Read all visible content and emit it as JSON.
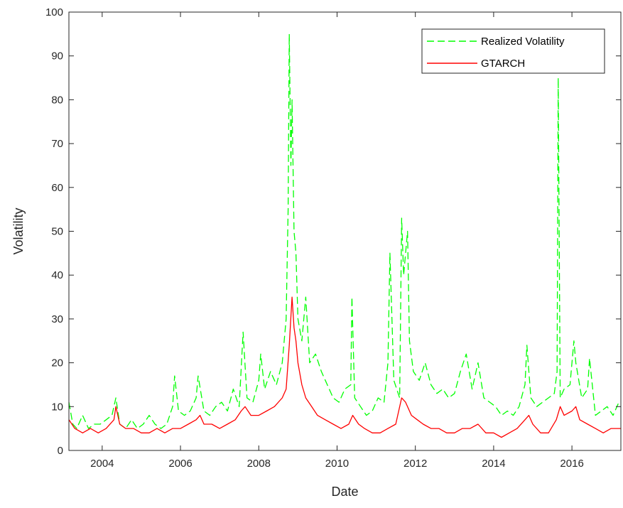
{
  "chart_data": {
    "type": "line",
    "xlabel": "Date",
    "ylabel": "Volatility",
    "xlim": [
      2003.15,
      2017.25
    ],
    "ylim": [
      0,
      100
    ],
    "x_ticks": [
      2004,
      2006,
      2008,
      2010,
      2012,
      2014,
      2016
    ],
    "y_ticks": [
      0,
      10,
      20,
      30,
      40,
      50,
      60,
      70,
      80,
      90,
      100
    ],
    "grid": false,
    "legend_position": "top-right",
    "series": [
      {
        "name": "Realized Volatility",
        "color": "#00ff00",
        "style": "dashed",
        "x": [
          2003.15,
          2003.25,
          2003.35,
          2003.5,
          2003.65,
          2003.8,
          2003.95,
          2004.1,
          2004.25,
          2004.35,
          2004.45,
          2004.6,
          2004.75,
          2004.9,
          2005.05,
          2005.2,
          2005.35,
          2005.5,
          2005.65,
          2005.8,
          2005.85,
          2005.95,
          2006.1,
          2006.25,
          2006.4,
          2006.45,
          2006.6,
          2006.75,
          2006.9,
          2007.05,
          2007.2,
          2007.35,
          2007.5,
          2007.6,
          2007.7,
          2007.85,
          2008.0,
          2008.05,
          2008.15,
          2008.3,
          2008.45,
          2008.6,
          2008.7,
          2008.75,
          2008.78,
          2008.82,
          2008.85,
          2008.9,
          2008.95,
          2009.0,
          2009.1,
          2009.2,
          2009.3,
          2009.45,
          2009.6,
          2009.75,
          2009.9,
          2010.05,
          2010.2,
          2010.35,
          2010.38,
          2010.45,
          2010.6,
          2010.75,
          2010.9,
          2011.05,
          2011.2,
          2011.3,
          2011.35,
          2011.45,
          2011.6,
          2011.65,
          2011.7,
          2011.8,
          2011.85,
          2011.95,
          2012.1,
          2012.25,
          2012.4,
          2012.55,
          2012.7,
          2012.85,
          2013.0,
          2013.15,
          2013.3,
          2013.45,
          2013.6,
          2013.75,
          2013.9,
          2014.05,
          2014.2,
          2014.35,
          2014.5,
          2014.65,
          2014.8,
          2014.85,
          2014.95,
          2015.1,
          2015.25,
          2015.4,
          2015.55,
          2015.62,
          2015.65,
          2015.7,
          2015.8,
          2015.95,
          2016.05,
          2016.1,
          2016.25,
          2016.4,
          2016.45,
          2016.6,
          2016.75,
          2016.9,
          2017.05,
          2017.2
        ],
        "values": [
          11,
          6,
          5,
          8,
          5,
          6,
          6,
          7,
          8,
          12,
          6,
          5,
          7,
          5,
          6,
          8,
          6,
          5,
          6,
          10,
          17,
          9,
          8,
          9,
          12,
          17,
          9,
          8,
          10,
          11,
          9,
          14,
          10,
          27,
          12,
          11,
          16,
          22,
          14,
          18,
          15,
          20,
          30,
          55,
          95,
          65,
          80,
          50,
          45,
          30,
          25,
          35,
          20,
          22,
          18,
          15,
          12,
          11,
          14,
          15,
          35,
          12,
          10,
          8,
          9,
          12,
          11,
          20,
          45,
          16,
          12,
          53,
          40,
          50,
          25,
          18,
          16,
          20,
          15,
          13,
          14,
          12,
          13,
          18,
          22,
          14,
          20,
          12,
          11,
          10,
          8,
          9,
          8,
          10,
          15,
          24,
          12,
          10,
          11,
          12,
          13,
          18,
          85,
          12,
          14,
          15,
          25,
          20,
          12,
          14,
          21,
          8,
          9,
          10,
          8,
          11
        ]
      },
      {
        "name": "GTARCH",
        "color": "#ff0000",
        "style": "solid",
        "x": [
          2003.15,
          2003.3,
          2003.5,
          2003.7,
          2003.9,
          2004.1,
          2004.3,
          2004.35,
          2004.45,
          2004.6,
          2004.8,
          2005.0,
          2005.2,
          2005.4,
          2005.6,
          2005.8,
          2006.0,
          2006.2,
          2006.4,
          2006.5,
          2006.6,
          2006.8,
          2007.0,
          2007.2,
          2007.4,
          2007.55,
          2007.65,
          2007.8,
          2008.0,
          2008.2,
          2008.4,
          2008.6,
          2008.7,
          2008.78,
          2008.85,
          2008.9,
          2008.95,
          2009.0,
          2009.1,
          2009.2,
          2009.35,
          2009.5,
          2009.7,
          2009.9,
          2010.1,
          2010.3,
          2010.4,
          2010.55,
          2010.7,
          2010.9,
          2011.1,
          2011.3,
          2011.5,
          2011.65,
          2011.75,
          2011.9,
          2012.05,
          2012.2,
          2012.4,
          2012.6,
          2012.8,
          2013.0,
          2013.2,
          2013.4,
          2013.6,
          2013.8,
          2014.0,
          2014.2,
          2014.4,
          2014.6,
          2014.8,
          2014.9,
          2015.0,
          2015.2,
          2015.4,
          2015.6,
          2015.7,
          2015.8,
          2016.0,
          2016.1,
          2016.2,
          2016.4,
          2016.6,
          2016.8,
          2017.0,
          2017.25
        ],
        "values": [
          7,
          5,
          4,
          5,
          4,
          5,
          7,
          10,
          6,
          5,
          5,
          4,
          4,
          5,
          4,
          5,
          5,
          6,
          7,
          8,
          6,
          6,
          5,
          6,
          7,
          9,
          10,
          8,
          8,
          9,
          10,
          12,
          14,
          24,
          35,
          28,
          25,
          20,
          15,
          12,
          10,
          8,
          7,
          6,
          5,
          6,
          8,
          6,
          5,
          4,
          4,
          5,
          6,
          12,
          11,
          8,
          7,
          6,
          5,
          5,
          4,
          4,
          5,
          5,
          6,
          4,
          4,
          3,
          4,
          5,
          7,
          8,
          6,
          4,
          4,
          7,
          10,
          8,
          9,
          10,
          7,
          6,
          5,
          4,
          5,
          5
        ]
      }
    ]
  }
}
